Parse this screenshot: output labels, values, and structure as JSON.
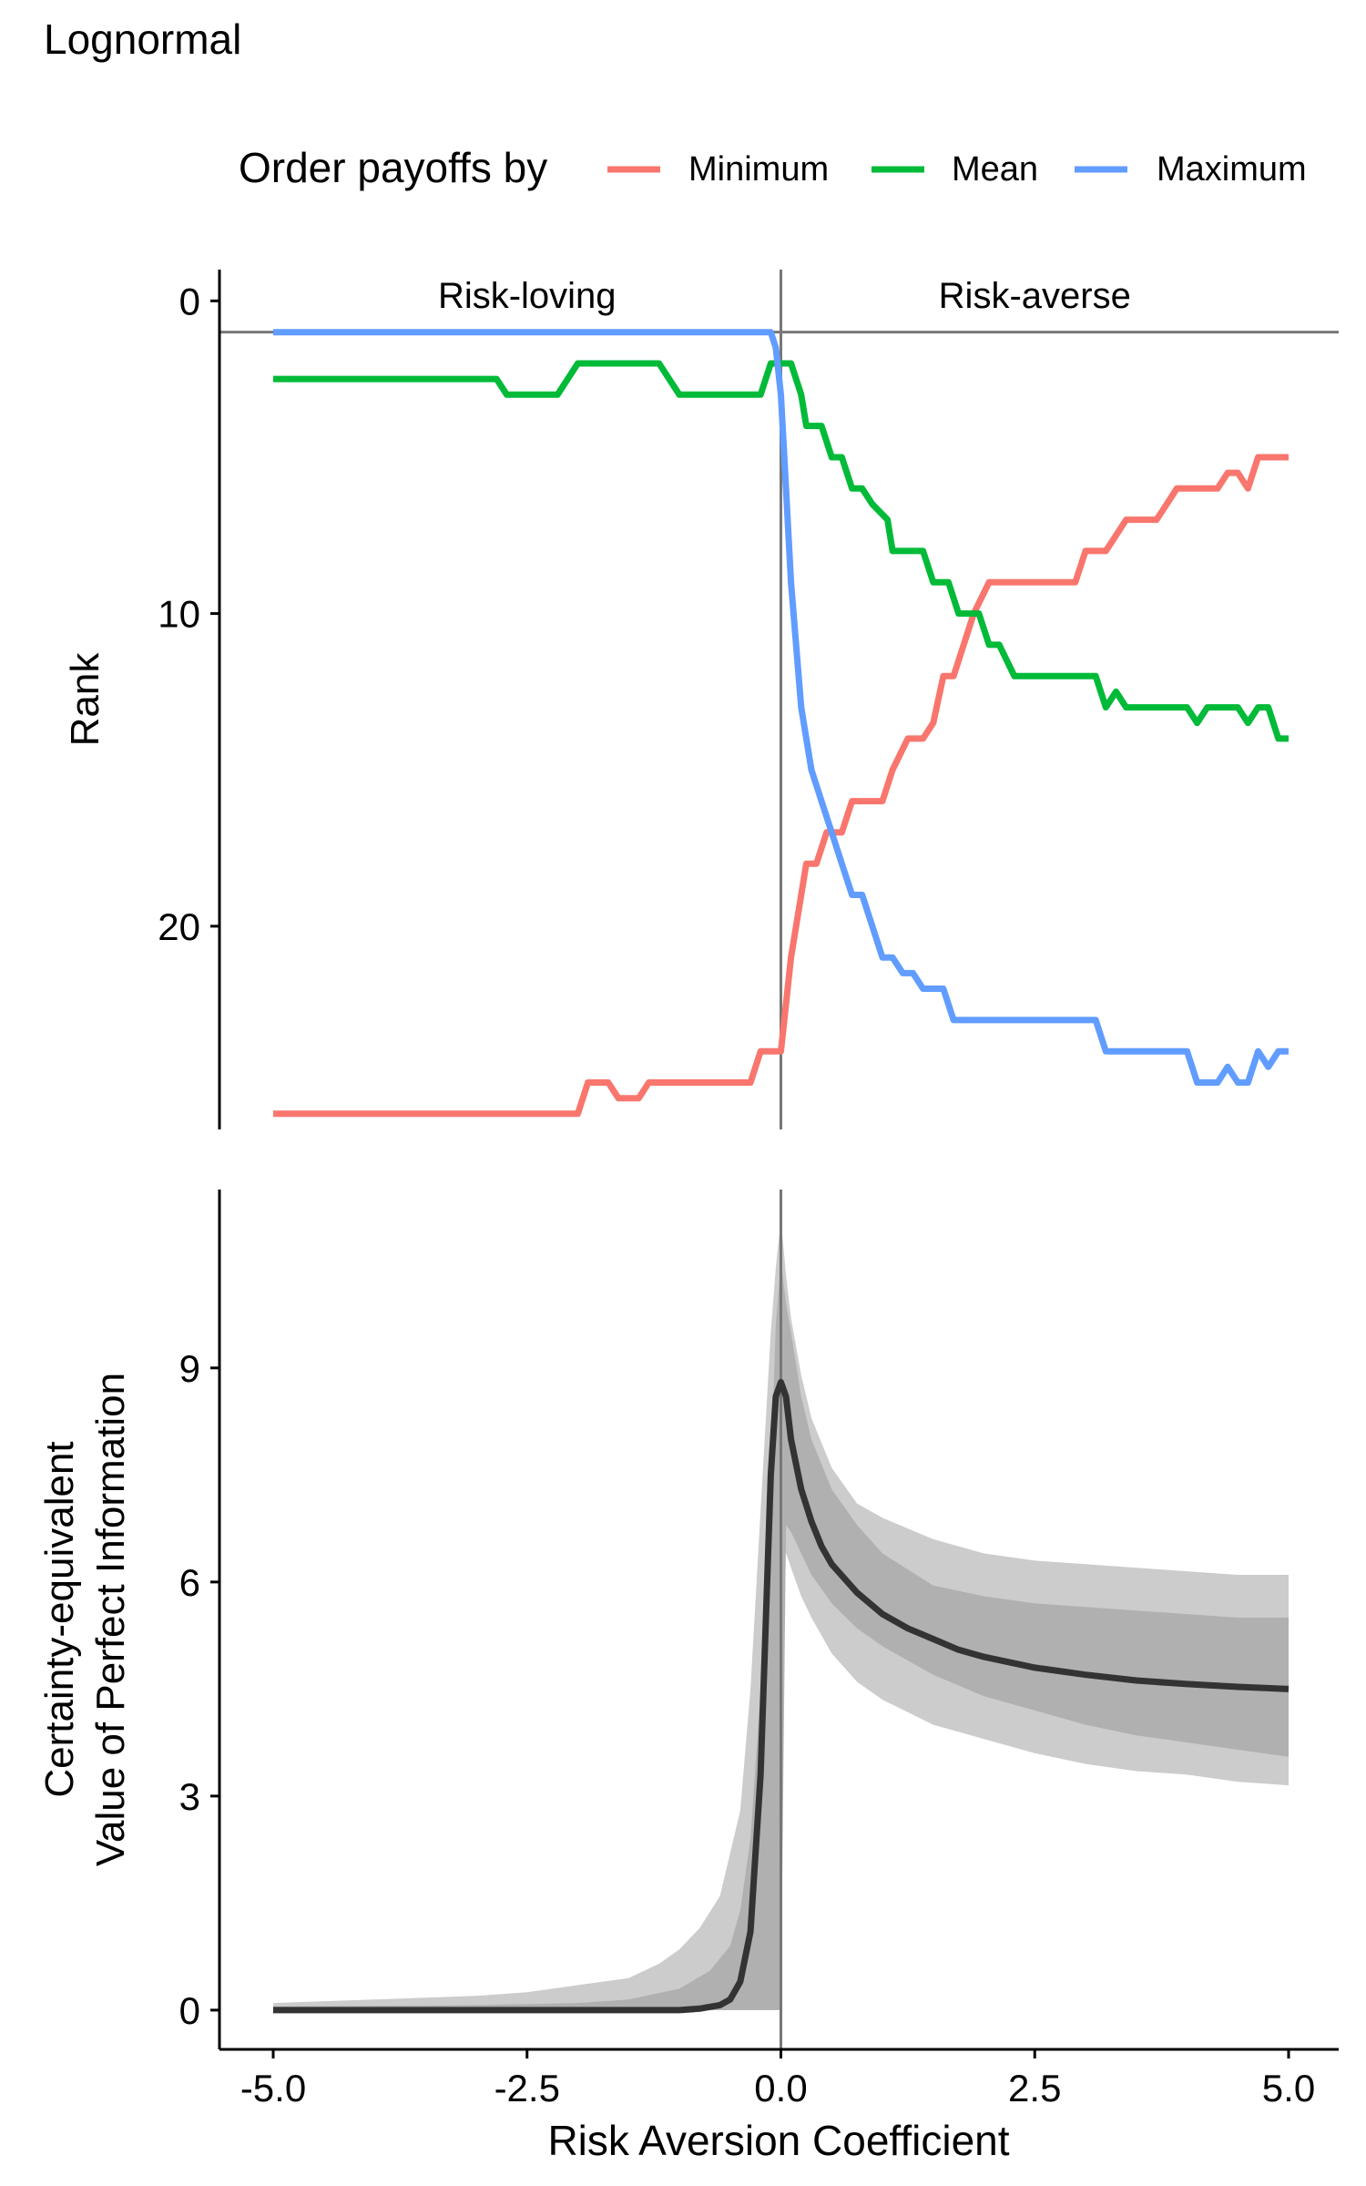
{
  "chart_data": [
    {
      "type": "line",
      "title": "Lognormal",
      "legend": {
        "title": "Order payoffs by",
        "placement": "top",
        "entries": [
          {
            "name": "Minimum",
            "color": "#F8766D"
          },
          {
            "name": "Mean",
            "color": "#00BA38"
          },
          {
            "name": "Maximum",
            "color": "#619CFF"
          }
        ]
      },
      "xlabel": "",
      "ylabel": "Rank",
      "xlim": [
        -5.2,
        5.4
      ],
      "ylim": [
        26.5,
        -1
      ],
      "y_reversed": true,
      "yticks": [
        0,
        10,
        20
      ],
      "grid": false,
      "reference_lines": {
        "vertical_x": 0,
        "horizontal_y": 1
      },
      "region_labels": [
        {
          "text": "Risk-loving",
          "x": -2.5
        },
        {
          "text": "Risk-averse",
          "x": 2.5
        }
      ],
      "series": [
        {
          "name": "Minimum",
          "color": "#F8766D",
          "points": [
            [
              -5,
              26
            ],
            [
              -2,
              26
            ],
            [
              -1.9,
              25
            ],
            [
              -1.7,
              25
            ],
            [
              -1.6,
              25.5
            ],
            [
              -1.4,
              25.5
            ],
            [
              -1.3,
              25
            ],
            [
              -0.3,
              25
            ],
            [
              -0.2,
              24
            ],
            [
              0,
              24
            ],
            [
              0.1,
              21
            ],
            [
              0.25,
              18
            ],
            [
              0.35,
              18
            ],
            [
              0.45,
              17
            ],
            [
              0.6,
              17
            ],
            [
              0.7,
              16
            ],
            [
              1.0,
              16
            ],
            [
              1.1,
              15
            ],
            [
              1.25,
              14
            ],
            [
              1.4,
              14
            ],
            [
              1.5,
              13.5
            ],
            [
              1.6,
              12
            ],
            [
              1.7,
              12
            ],
            [
              1.8,
              11
            ],
            [
              1.9,
              10
            ],
            [
              2.05,
              9
            ],
            [
              2.9,
              9
            ],
            [
              3.0,
              8
            ],
            [
              3.2,
              8
            ],
            [
              3.3,
              7.5
            ],
            [
              3.4,
              7
            ],
            [
              3.7,
              7
            ],
            [
              3.8,
              6.5
            ],
            [
              3.9,
              6
            ],
            [
              4.3,
              6
            ],
            [
              4.4,
              5.5
            ],
            [
              4.5,
              5.5
            ],
            [
              4.6,
              6
            ],
            [
              4.7,
              5
            ],
            [
              5,
              5
            ]
          ]
        },
        {
          "name": "Mean",
          "color": "#00BA38",
          "points": [
            [
              -5,
              2.5
            ],
            [
              -2.8,
              2.5
            ],
            [
              -2.7,
              3
            ],
            [
              -2.2,
              3
            ],
            [
              -2.0,
              2
            ],
            [
              -1.2,
              2
            ],
            [
              -1.0,
              3
            ],
            [
              -0.2,
              3
            ],
            [
              -0.1,
              2
            ],
            [
              0.1,
              2
            ],
            [
              0.2,
              3
            ],
            [
              0.25,
              4
            ],
            [
              0.4,
              4
            ],
            [
              0.5,
              5
            ],
            [
              0.6,
              5
            ],
            [
              0.7,
              6
            ],
            [
              0.8,
              6
            ],
            [
              0.9,
              6.5
            ],
            [
              1.05,
              7
            ],
            [
              1.1,
              8
            ],
            [
              1.4,
              8
            ],
            [
              1.5,
              9
            ],
            [
              1.65,
              9
            ],
            [
              1.75,
              10
            ],
            [
              1.95,
              10
            ],
            [
              2.05,
              11
            ],
            [
              2.15,
              11
            ],
            [
              2.3,
              12
            ],
            [
              3.1,
              12
            ],
            [
              3.2,
              13
            ],
            [
              3.3,
              12.5
            ],
            [
              3.4,
              13
            ],
            [
              4.0,
              13
            ],
            [
              4.1,
              13.5
            ],
            [
              4.2,
              13
            ],
            [
              4.5,
              13
            ],
            [
              4.6,
              13.5
            ],
            [
              4.7,
              13
            ],
            [
              4.8,
              13
            ],
            [
              4.9,
              14
            ],
            [
              5,
              14
            ]
          ]
        },
        {
          "name": "Maximum",
          "color": "#619CFF",
          "points": [
            [
              -5,
              1
            ],
            [
              -0.1,
              1
            ],
            [
              -0.05,
              1.5
            ],
            [
              0,
              3
            ],
            [
              0.05,
              6
            ],
            [
              0.1,
              9
            ],
            [
              0.2,
              13
            ],
            [
              0.3,
              15
            ],
            [
              0.4,
              16
            ],
            [
              0.5,
              17
            ],
            [
              0.6,
              18
            ],
            [
              0.7,
              19
            ],
            [
              0.8,
              19
            ],
            [
              0.9,
              20
            ],
            [
              1.0,
              21
            ],
            [
              1.1,
              21
            ],
            [
              1.2,
              21.5
            ],
            [
              1.3,
              21.5
            ],
            [
              1.4,
              22
            ],
            [
              1.6,
              22
            ],
            [
              1.7,
              23
            ],
            [
              3.1,
              23
            ],
            [
              3.2,
              24
            ],
            [
              3.3,
              24
            ],
            [
              4.0,
              24
            ],
            [
              4.1,
              25
            ],
            [
              4.3,
              25
            ],
            [
              4.4,
              24.5
            ],
            [
              4.5,
              25
            ],
            [
              4.6,
              25
            ],
            [
              4.7,
              24
            ],
            [
              4.8,
              24.5
            ],
            [
              4.9,
              24
            ],
            [
              5,
              24
            ]
          ]
        }
      ]
    },
    {
      "type": "area",
      "title": "",
      "xlabel": "Risk Aversion Coefficient",
      "ylabel": "Certainty-equivalent\nValue of Perfect Information",
      "xlim": [
        -5.5,
        5.5
      ],
      "ylim": [
        -0.55,
        11.5
      ],
      "xticks": [
        -5.0,
        -2.5,
        0.0,
        2.5,
        5.0
      ],
      "xtick_labels": [
        "-5.0",
        "-2.5",
        "0.0",
        "2.5",
        "5.0"
      ],
      "yticks": [
        0,
        3,
        6,
        9
      ],
      "grid": false,
      "reference_lines": {
        "vertical_x": 0
      },
      "bands": [
        {
          "name": "outer",
          "color": "#cccccc",
          "x": [
            -5,
            -4,
            -3,
            -2.5,
            -2,
            -1.5,
            -1.2,
            -1,
            -0.8,
            -0.6,
            -0.4,
            -0.3,
            -0.2,
            -0.1,
            -0.05,
            0,
            0.05,
            0.1,
            0.2,
            0.3,
            0.5,
            0.75,
            1,
            1.5,
            2,
            2.5,
            3,
            3.5,
            4,
            4.5,
            5
          ],
          "lower": [
            0,
            0,
            0,
            0,
            0,
            0,
            0,
            0,
            0,
            0,
            0,
            0,
            0,
            0,
            0,
            6.5,
            6.4,
            6.2,
            5.8,
            5.5,
            5.0,
            4.6,
            4.35,
            4.0,
            3.8,
            3.6,
            3.45,
            3.35,
            3.3,
            3.2,
            3.15
          ],
          "upper": [
            0.1,
            0.15,
            0.2,
            0.25,
            0.35,
            0.45,
            0.65,
            0.85,
            1.15,
            1.6,
            2.8,
            4.5,
            7,
            9.5,
            10.4,
            11.1,
            10.3,
            9.7,
            8.9,
            8.3,
            7.6,
            7.1,
            6.9,
            6.6,
            6.4,
            6.3,
            6.25,
            6.2,
            6.15,
            6.1,
            6.1
          ]
        },
        {
          "name": "inner",
          "color": "#b0b0b0",
          "x": [
            -5,
            -3,
            -2,
            -1.5,
            -1,
            -0.7,
            -0.5,
            -0.4,
            -0.3,
            -0.2,
            -0.1,
            -0.05,
            0,
            0.05,
            0.1,
            0.2,
            0.3,
            0.5,
            0.75,
            1,
            1.5,
            2,
            2.5,
            3,
            3.5,
            4,
            4.5,
            5
          ],
          "lower": [
            0,
            0,
            0,
            0,
            0,
            0,
            0,
            0,
            0,
            0,
            0,
            0,
            0,
            6.8,
            6.7,
            6.4,
            6.1,
            5.7,
            5.35,
            5.1,
            4.7,
            4.4,
            4.2,
            4.0,
            3.85,
            3.75,
            3.65,
            3.55
          ],
          "upper": [
            0.05,
            0.07,
            0.1,
            0.15,
            0.3,
            0.55,
            0.9,
            1.4,
            2.4,
            4.5,
            7.5,
            9.6,
            10.5,
            9.9,
            9.5,
            8.6,
            8.0,
            7.3,
            6.8,
            6.4,
            5.95,
            5.8,
            5.7,
            5.65,
            5.6,
            5.55,
            5.5,
            5.5
          ]
        }
      ],
      "series": [
        {
          "name": "",
          "color": "#333333",
          "x": [
            -5,
            -2,
            -1,
            -0.8,
            -0.6,
            -0.5,
            -0.4,
            -0.3,
            -0.2,
            -0.1,
            -0.05,
            0,
            0.05,
            0.1,
            0.2,
            0.3,
            0.4,
            0.5,
            0.75,
            1,
            1.25,
            1.5,
            1.75,
            2,
            2.5,
            3,
            3.5,
            4,
            4.5,
            5
          ],
          "y": [
            0,
            0,
            0,
            0.02,
            0.07,
            0.15,
            0.4,
            1.1,
            3.3,
            7.5,
            8.6,
            8.8,
            8.6,
            8.0,
            7.3,
            6.85,
            6.5,
            6.25,
            5.85,
            5.55,
            5.35,
            5.2,
            5.05,
            4.95,
            4.8,
            4.7,
            4.62,
            4.57,
            4.53,
            4.5
          ]
        }
      ]
    }
  ]
}
